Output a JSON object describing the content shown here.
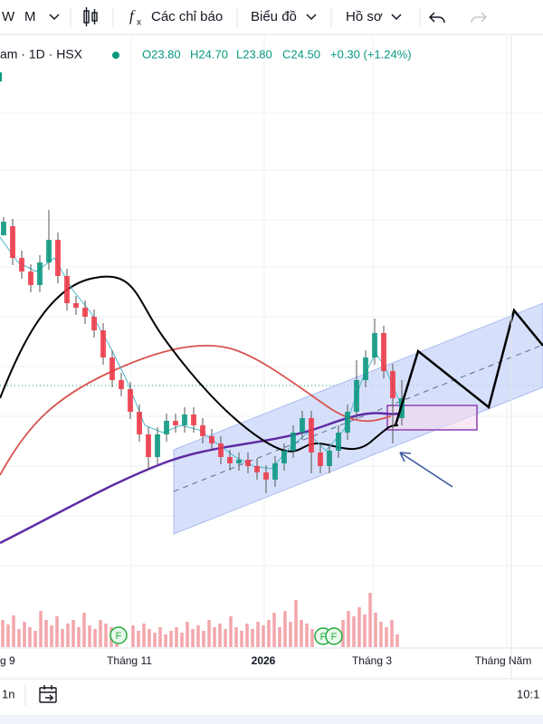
{
  "toolbar": {
    "intervals": [
      "W",
      "M"
    ],
    "indicators": "Các chỉ báo",
    "chart": "Biểu đồ",
    "profile": "Hồ sơ"
  },
  "legend": {
    "symbol": "am · 1D · HSX",
    "open": "O23.80",
    "high": "H24.70",
    "low": "L23.80",
    "close": "C24.50",
    "change": "+0.30 (+1.24%)"
  },
  "x_axis": {
    "labels": [
      "g 9",
      "Tháng 11",
      "2026",
      "Tháng 3",
      "Tháng Năm"
    ]
  },
  "markers": [
    "F",
    "F",
    "F"
  ],
  "footer": {
    "range": "1n",
    "time": "10:1"
  }
}
